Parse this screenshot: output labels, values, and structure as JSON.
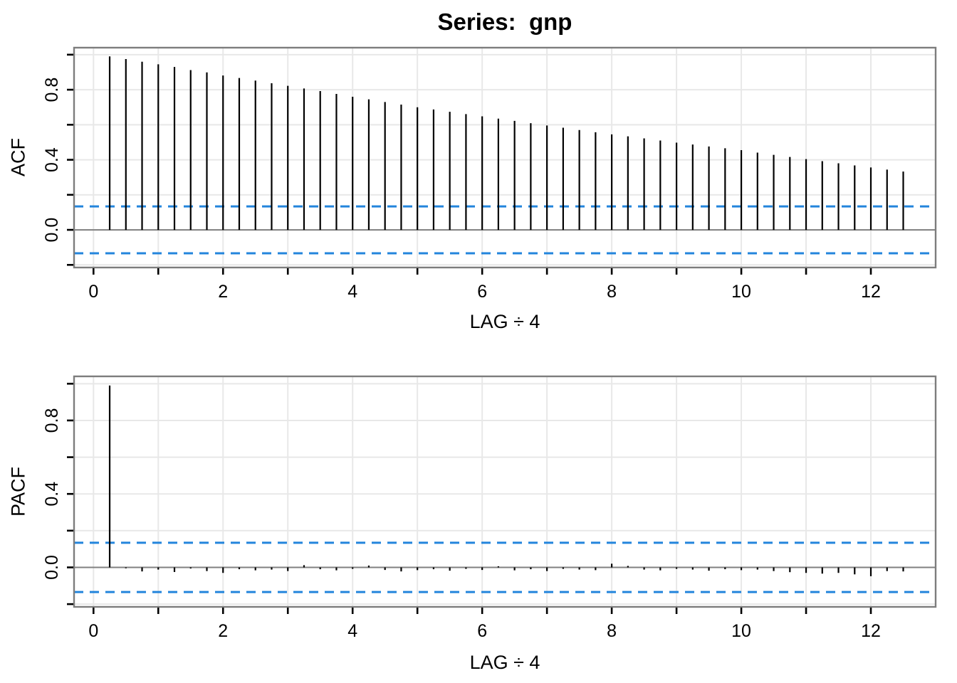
{
  "title": "Series:  gnp",
  "colors": {
    "bar": "#000000",
    "confidence_band": "#2385DC",
    "grid": "#e8e8e8",
    "panel_border": "#7d7d7d",
    "zero_line": "#808080",
    "text": "#000000",
    "background": "#ffffff"
  },
  "chart_data": [
    {
      "type": "bar",
      "name": "acf-panel",
      "title": "Series:  gnp",
      "ylabel": "ACF",
      "xlabel": "LAG ÷ 4",
      "x_start": 0.25,
      "x_step": 0.25,
      "values": [
        0.99,
        0.975,
        0.96,
        0.945,
        0.93,
        0.912,
        0.899,
        0.881,
        0.867,
        0.852,
        0.837,
        0.822,
        0.807,
        0.792,
        0.776,
        0.76,
        0.745,
        0.73,
        0.715,
        0.7,
        0.687,
        0.674,
        0.661,
        0.648,
        0.635,
        0.622,
        0.609,
        0.596,
        0.583,
        0.57,
        0.557,
        0.545,
        0.534,
        0.522,
        0.51,
        0.498,
        0.487,
        0.476,
        0.466,
        0.455,
        0.441,
        0.428,
        0.416,
        0.404,
        0.392,
        0.38,
        0.368,
        0.356,
        0.344,
        0.333
      ],
      "conf_band": 0.134,
      "band_style": "dashed",
      "xlim": [
        -0.3,
        13.0
      ],
      "ylim": [
        -0.215,
        1.04
      ],
      "x_labeled_ticks": [
        0,
        2,
        4,
        6,
        8,
        10,
        12
      ],
      "x_all_ticks": [
        0,
        1,
        2,
        3,
        4,
        5,
        6,
        7,
        8,
        9,
        10,
        11,
        12
      ],
      "y_labeled_ticks": [
        0.0,
        0.4,
        0.8
      ],
      "y_labeled_tick_texts": [
        "0.0",
        "0.4",
        "0.8"
      ],
      "y_all_ticks": [
        -0.2,
        0.0,
        0.2,
        0.4,
        0.6,
        0.8,
        1.0
      ],
      "grid": true,
      "legend": "none"
    },
    {
      "type": "bar",
      "name": "pacf-panel",
      "title": "",
      "ylabel": "PACF",
      "xlabel": "LAG ÷ 4",
      "x_start": 0.25,
      "x_step": 0.25,
      "values": [
        0.99,
        -0.005,
        -0.022,
        -0.012,
        -0.025,
        -0.006,
        -0.02,
        -0.03,
        -0.01,
        -0.016,
        -0.012,
        -0.02,
        0.012,
        -0.01,
        -0.016,
        -0.008,
        0.01,
        -0.014,
        -0.022,
        -0.015,
        -0.01,
        -0.018,
        -0.008,
        -0.014,
        0.006,
        -0.016,
        -0.01,
        -0.02,
        -0.008,
        -0.012,
        -0.015,
        0.02,
        0.008,
        -0.012,
        -0.016,
        -0.008,
        -0.012,
        -0.018,
        -0.01,
        -0.015,
        -0.012,
        -0.02,
        -0.026,
        -0.03,
        -0.034,
        -0.03,
        -0.038,
        -0.048,
        -0.02,
        -0.022
      ],
      "conf_band": 0.134,
      "band_style": "dashed",
      "xlim": [
        -0.3,
        13.0
      ],
      "ylim": [
        -0.215,
        1.04
      ],
      "x_labeled_ticks": [
        0,
        2,
        4,
        6,
        8,
        10,
        12
      ],
      "x_all_ticks": [
        0,
        1,
        2,
        3,
        4,
        5,
        6,
        7,
        8,
        9,
        10,
        11,
        12
      ],
      "y_labeled_ticks": [
        0.0,
        0.4,
        0.8
      ],
      "y_labeled_tick_texts": [
        "0.0",
        "0.4",
        "0.8"
      ],
      "y_all_ticks": [
        -0.2,
        0.0,
        0.2,
        0.4,
        0.6,
        0.8,
        1.0
      ],
      "grid": true,
      "legend": "none"
    }
  ]
}
